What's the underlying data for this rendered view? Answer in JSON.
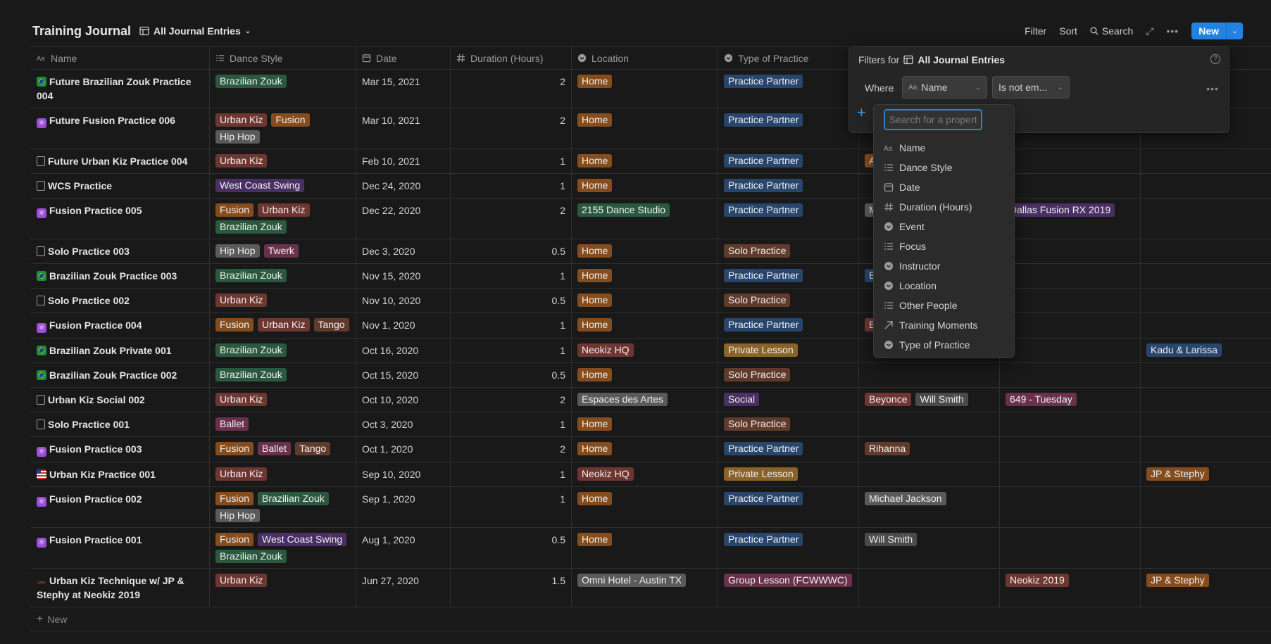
{
  "page": {
    "title": "Training Journal",
    "view_name": "All Journal Entries"
  },
  "toolbar": {
    "filter": "Filter",
    "sort": "Sort",
    "search": "Search",
    "new": "New"
  },
  "columns": [
    "Name",
    "Dance Style",
    "Date",
    "Duration (Hours)",
    "Location",
    "Type of Practice"
  ],
  "rows": [
    {
      "icon": "brazil-flag-icon",
      "name": "Future Brazilian Zouk Practice 004",
      "dance": [
        {
          "t": "Brazilian Zouk",
          "c": "green"
        }
      ],
      "date": "Mar 15, 2021",
      "dur": "2",
      "loc": [
        {
          "t": "Home",
          "c": "orange"
        }
      ],
      "type": [
        {
          "t": "Practice Partner",
          "c": "blue"
        }
      ],
      "p1": [],
      "p2": [],
      "p3": []
    },
    {
      "icon": "atom-icon",
      "name": "Future Fusion Practice 006",
      "dance": [
        {
          "t": "Urban Kiz",
          "c": "red"
        },
        {
          "t": "Fusion",
          "c": "orange"
        },
        {
          "t": "Hip Hop",
          "c": "gray"
        }
      ],
      "date": "Mar 10, 2021",
      "dur": "2",
      "loc": [
        {
          "t": "Home",
          "c": "orange"
        }
      ],
      "type": [
        {
          "t": "Practice Partner",
          "c": "blue"
        }
      ],
      "p1": [],
      "p2": [],
      "p3": []
    },
    {
      "icon": "page-icon",
      "name": "Future Urban Kiz Practice 004",
      "dance": [
        {
          "t": "Urban Kiz",
          "c": "red"
        }
      ],
      "date": "Feb 10, 2021",
      "dur": "1",
      "loc": [
        {
          "t": "Home",
          "c": "orange"
        }
      ],
      "type": [
        {
          "t": "Practice Partner",
          "c": "blue"
        }
      ],
      "p1": [
        {
          "t": "A",
          "c": "orange"
        }
      ],
      "p2": [],
      "p3": []
    },
    {
      "icon": "page-icon",
      "name": "WCS Practice",
      "dance": [
        {
          "t": "West Coast Swing",
          "c": "purple"
        }
      ],
      "date": "Dec 24, 2020",
      "dur": "1",
      "loc": [
        {
          "t": "Home",
          "c": "orange"
        }
      ],
      "type": [
        {
          "t": "Practice Partner",
          "c": "blue"
        }
      ],
      "p1": [],
      "p2": [],
      "p3": []
    },
    {
      "icon": "atom-icon",
      "name": "Fusion Practice 005",
      "dance": [
        {
          "t": "Fusion",
          "c": "orange"
        },
        {
          "t": "Urban Kiz",
          "c": "red"
        },
        {
          "t": "Brazilian Zouk",
          "c": "green"
        }
      ],
      "date": "Dec 22, 2020",
      "dur": "2",
      "loc": [
        {
          "t": "2155 Dance Studio",
          "c": "green"
        }
      ],
      "type": [
        {
          "t": "Practice Partner",
          "c": "blue"
        }
      ],
      "p1": [
        {
          "t": "M",
          "c": "gray"
        }
      ],
      "p2": [
        {
          "t": "Dallas Fusion RX 2019",
          "c": "purple"
        }
      ],
      "p3": []
    },
    {
      "icon": "page-icon",
      "name": "Solo Practice 003",
      "dance": [
        {
          "t": "Hip Hop",
          "c": "gray"
        },
        {
          "t": "Twerk",
          "c": "pink"
        }
      ],
      "date": "Dec 3, 2020",
      "dur": "0.5",
      "loc": [
        {
          "t": "Home",
          "c": "orange"
        }
      ],
      "type": [
        {
          "t": "Solo Practice",
          "c": "brown"
        }
      ],
      "p1": [],
      "p2": [],
      "p3": []
    },
    {
      "icon": "brazil-flag-icon",
      "name": "Brazilian Zouk Practice 003",
      "dance": [
        {
          "t": "Brazilian Zouk",
          "c": "green"
        }
      ],
      "date": "Nov 15, 2020",
      "dur": "1",
      "loc": [
        {
          "t": "Home",
          "c": "orange"
        }
      ],
      "type": [
        {
          "t": "Practice Partner",
          "c": "blue"
        }
      ],
      "p1": [
        {
          "t": "B",
          "c": "blue"
        }
      ],
      "p2": [],
      "p3": []
    },
    {
      "icon": "page-icon",
      "name": "Solo Practice 002",
      "dance": [
        {
          "t": "Urban Kiz",
          "c": "red"
        }
      ],
      "date": "Nov 10, 2020",
      "dur": "0.5",
      "loc": [
        {
          "t": "Home",
          "c": "orange"
        }
      ],
      "type": [
        {
          "t": "Solo Practice",
          "c": "brown"
        }
      ],
      "p1": [],
      "p2": [],
      "p3": []
    },
    {
      "icon": "atom-icon",
      "name": "Fusion Practice 004",
      "dance": [
        {
          "t": "Fusion",
          "c": "orange"
        },
        {
          "t": "Urban Kiz",
          "c": "red"
        },
        {
          "t": "Tango",
          "c": "brown"
        }
      ],
      "date": "Nov 1, 2020",
      "dur": "1",
      "loc": [
        {
          "t": "Home",
          "c": "orange"
        }
      ],
      "type": [
        {
          "t": "Practice Partner",
          "c": "blue"
        }
      ],
      "p1": [
        {
          "t": "B",
          "c": "red"
        }
      ],
      "p2": [],
      "p3": []
    },
    {
      "icon": "brazil-flag-icon",
      "name": "Brazilian Zouk Private 001",
      "dance": [
        {
          "t": "Brazilian Zouk",
          "c": "green"
        }
      ],
      "date": "Oct 16, 2020",
      "dur": "1",
      "loc": [
        {
          "t": "Neokiz HQ",
          "c": "red"
        }
      ],
      "type": [
        {
          "t": "Private Lesson",
          "c": "yellow"
        }
      ],
      "p1": [],
      "p2": [],
      "p3": [
        {
          "t": "Kadu & Larissa",
          "c": "blue"
        }
      ]
    },
    {
      "icon": "brazil-flag-icon",
      "name": "Brazilian Zouk Practice 002",
      "dance": [
        {
          "t": "Brazilian Zouk",
          "c": "green"
        }
      ],
      "date": "Oct 15, 2020",
      "dur": "0.5",
      "loc": [
        {
          "t": "Home",
          "c": "orange"
        }
      ],
      "type": [
        {
          "t": "Solo Practice",
          "c": "brown"
        }
      ],
      "p1": [],
      "p2": [],
      "p3": []
    },
    {
      "icon": "page-icon",
      "name": "Urban Kiz Social 002",
      "dance": [
        {
          "t": "Urban Kiz",
          "c": "red"
        }
      ],
      "date": "Oct 10, 2020",
      "dur": "2",
      "loc": [
        {
          "t": "Espaces des Artes",
          "c": "gray"
        }
      ],
      "type": [
        {
          "t": "Social",
          "c": "purple"
        }
      ],
      "p1": [
        {
          "t": "Beyonce",
          "c": "red"
        },
        {
          "t": "Will Smith",
          "c": "lgray"
        }
      ],
      "p2": [
        {
          "t": "649 - Tuesday",
          "c": "pink"
        }
      ],
      "p3": []
    },
    {
      "icon": "page-icon",
      "name": "Solo Practice 001",
      "dance": [
        {
          "t": "Ballet",
          "c": "pink"
        }
      ],
      "date": "Oct 3, 2020",
      "dur": "1",
      "loc": [
        {
          "t": "Home",
          "c": "orange"
        }
      ],
      "type": [
        {
          "t": "Solo Practice",
          "c": "brown"
        }
      ],
      "p1": [],
      "p2": [],
      "p3": []
    },
    {
      "icon": "atom-icon",
      "name": "Fusion Practice 003",
      "dance": [
        {
          "t": "Fusion",
          "c": "orange"
        },
        {
          "t": "Ballet",
          "c": "pink"
        },
        {
          "t": "Tango",
          "c": "brown"
        }
      ],
      "date": "Oct 1, 2020",
      "dur": "2",
      "loc": [
        {
          "t": "Home",
          "c": "orange"
        }
      ],
      "type": [
        {
          "t": "Practice Partner",
          "c": "blue"
        }
      ],
      "p1": [
        {
          "t": "Rihanna",
          "c": "brown"
        }
      ],
      "p2": [],
      "p3": []
    },
    {
      "icon": "us-flag-icon",
      "name": "Urban Kiz Practice 001",
      "dance": [
        {
          "t": "Urban Kiz",
          "c": "red"
        }
      ],
      "date": "Sep 10, 2020",
      "dur": "1",
      "loc": [
        {
          "t": "Neokiz HQ",
          "c": "red"
        }
      ],
      "type": [
        {
          "t": "Private Lesson",
          "c": "yellow"
        }
      ],
      "p1": [],
      "p2": [],
      "p3": [
        {
          "t": "JP & Stephy",
          "c": "orange"
        }
      ]
    },
    {
      "icon": "atom-icon",
      "name": "Fusion Practice 002",
      "dance": [
        {
          "t": "Fusion",
          "c": "orange"
        },
        {
          "t": "Brazilian Zouk",
          "c": "green"
        },
        {
          "t": "Hip Hop",
          "c": "gray"
        }
      ],
      "date": "Sep 1, 2020",
      "dur": "1",
      "loc": [
        {
          "t": "Home",
          "c": "orange"
        }
      ],
      "type": [
        {
          "t": "Practice Partner",
          "c": "blue"
        }
      ],
      "p1": [
        {
          "t": "Michael Jackson",
          "c": "gray"
        }
      ],
      "p2": [],
      "p3": []
    },
    {
      "icon": "atom-icon",
      "name": "Fusion Practice 001",
      "dance": [
        {
          "t": "Fusion",
          "c": "orange"
        },
        {
          "t": "West Coast Swing",
          "c": "purple"
        },
        {
          "t": "Brazilian Zouk",
          "c": "green"
        }
      ],
      "date": "Aug 1, 2020",
      "dur": "0.5",
      "loc": [
        {
          "t": "Home",
          "c": "orange"
        }
      ],
      "type": [
        {
          "t": "Practice Partner",
          "c": "blue"
        }
      ],
      "p1": [
        {
          "t": "Will Smith",
          "c": "lgray"
        }
      ],
      "p2": [],
      "p3": []
    },
    {
      "icon": "mustache-icon",
      "name": "Urban Kiz Technique w/ JP & Stephy at Neokiz 2019",
      "dance": [
        {
          "t": "Urban Kiz",
          "c": "red"
        }
      ],
      "date": "Jun 27, 2020",
      "dur": "1.5",
      "loc": [
        {
          "t": "Omni Hotel - Austin TX",
          "c": "gray"
        }
      ],
      "type": [
        {
          "t": "Group Lesson (FCWWWC)",
          "c": "pink"
        }
      ],
      "p1": [],
      "p2": [
        {
          "t": "Neokiz 2019",
          "c": "red"
        }
      ],
      "p3": [
        {
          "t": "JP & Stephy",
          "c": "orange"
        }
      ]
    }
  ],
  "new_row_label": "New",
  "filter_panel": {
    "title_prefix": "Filters for",
    "view_name": "All Journal Entries",
    "where": "Where",
    "property": "Name",
    "operator": "Is not em..."
  },
  "prop_menu": {
    "placeholder": "Search for a property...",
    "items": [
      {
        "label": "Name",
        "icon": "text-icon"
      },
      {
        "label": "Dance Style",
        "icon": "list-icon"
      },
      {
        "label": "Date",
        "icon": "calendar-icon"
      },
      {
        "label": "Duration (Hours)",
        "icon": "number-icon"
      },
      {
        "label": "Event",
        "icon": "select-icon"
      },
      {
        "label": "Focus",
        "icon": "list-icon"
      },
      {
        "label": "Instructor",
        "icon": "select-icon"
      },
      {
        "label": "Location",
        "icon": "select-icon"
      },
      {
        "label": "Other People",
        "icon": "list-icon"
      },
      {
        "label": "Training Moments",
        "icon": "relation-icon"
      },
      {
        "label": "Type of Practice",
        "icon": "select-icon"
      }
    ]
  },
  "colors": {
    "accent": "#2383e2",
    "background": "#191919"
  }
}
